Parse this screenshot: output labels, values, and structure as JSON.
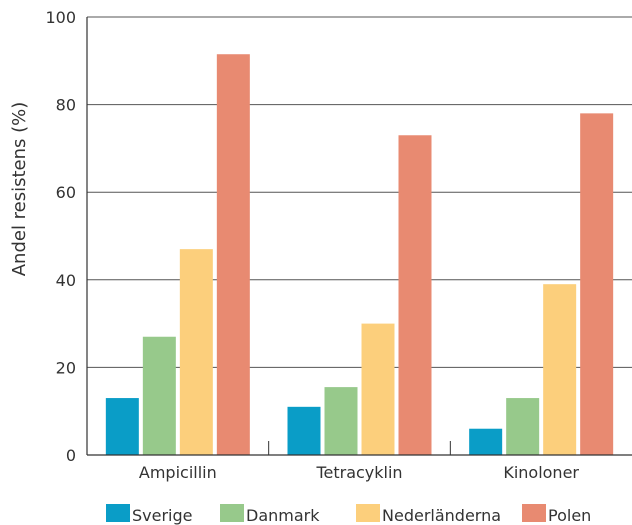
{
  "chart_data": {
    "type": "bar",
    "title": "",
    "xlabel": "",
    "ylabel": "Andel resistens (%)",
    "ylim": [
      0,
      100
    ],
    "yticks": [
      0,
      20,
      40,
      60,
      80,
      100
    ],
    "grid": true,
    "legend_position": "bottom",
    "categories": [
      "Ampicillin",
      "Tetracyklin",
      "Kinoloner"
    ],
    "series": [
      {
        "name": "Sverige",
        "color": "#0a9dc7",
        "values": [
          13,
          11,
          6
        ]
      },
      {
        "name": "Danmark",
        "color": "#97c98b",
        "values": [
          27,
          15.5,
          13
        ]
      },
      {
        "name": "Nederländerna",
        "color": "#fccf7c",
        "values": [
          47,
          30,
          39
        ]
      },
      {
        "name": "Polen",
        "color": "#e88a71",
        "values": [
          91.5,
          73,
          78
        ]
      }
    ]
  }
}
